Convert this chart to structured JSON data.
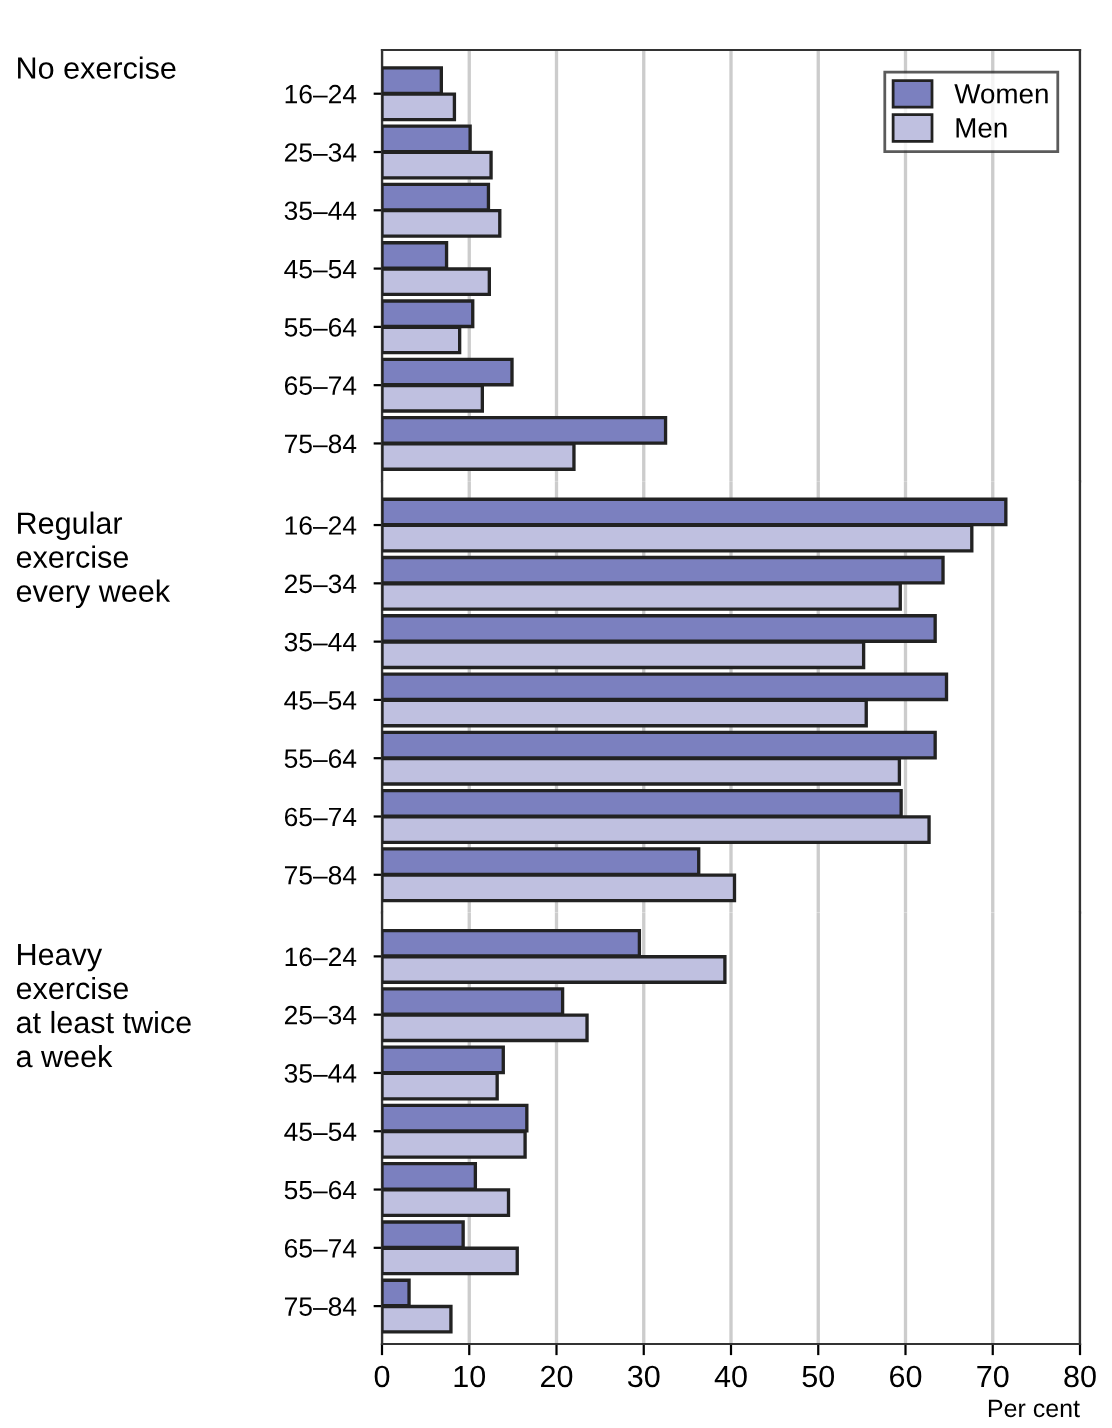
{
  "chart_data": [
    {
      "type": "bar",
      "orientation": "horizontal",
      "title": "No exercise",
      "categories": [
        "16–24",
        "25–34",
        "35–44",
        "45–54",
        "55–64",
        "65–74",
        "75–84"
      ],
      "series": [
        {
          "name": "Women",
          "color": "#7b80bf",
          "values": [
            6.8,
            10.1,
            12.2,
            7.4,
            10.4,
            14.9,
            32.5
          ]
        },
        {
          "name": "Men",
          "color": "#bfc0e0",
          "values": [
            8.3,
            12.5,
            13.5,
            12.3,
            8.9,
            11.5,
            22.0
          ]
        }
      ],
      "xlim": [
        0,
        80
      ],
      "xticks": [
        0,
        10,
        20,
        30,
        40,
        50,
        60,
        70,
        80
      ],
      "grid": "x",
      "legend": "top right",
      "tick_labels": "y"
    },
    {
      "type": "bar",
      "orientation": "horizontal",
      "title": "Regular\nexercise\nevery week",
      "categories": [
        "16–24",
        "25–34",
        "35–44",
        "45–54",
        "55–64",
        "65–74",
        "75–84"
      ],
      "series": [
        {
          "color": "#7b80bf",
          "values": [
            71.5,
            64.3,
            63.4,
            64.7,
            63.4,
            59.5,
            36.3
          ]
        },
        {
          "color": "#bfc0e0",
          "values": [
            67.6,
            59.4,
            55.2,
            55.5,
            59.3,
            62.7,
            40.4
          ]
        }
      ],
      "xlim": [
        0,
        80
      ],
      "xticks": [
        0,
        10,
        20,
        30,
        40,
        50,
        60,
        70,
        80
      ],
      "grid": "x",
      "tick_labels": "y"
    },
    {
      "type": "bar",
      "orientation": "horizontal",
      "title": "Heavy\nexercise\nat least twice\na week",
      "xlabel": "Per cent",
      "categories": [
        "16–24",
        "25–34",
        "35–44",
        "45–54",
        "55–64",
        "65–74",
        "75–84"
      ],
      "series": [
        {
          "color": "#7b80bf",
          "values": [
            29.5,
            20.7,
            13.9,
            16.6,
            10.7,
            9.3,
            3.1
          ]
        },
        {
          "color": "#bfc0e0",
          "values": [
            39.3,
            23.5,
            13.2,
            16.4,
            14.5,
            15.5,
            7.9
          ]
        }
      ],
      "xlim": [
        0,
        80
      ],
      "xticks": [
        0,
        10,
        20,
        30,
        40,
        50,
        60,
        70,
        80
      ],
      "grid": "x"
    }
  ]
}
